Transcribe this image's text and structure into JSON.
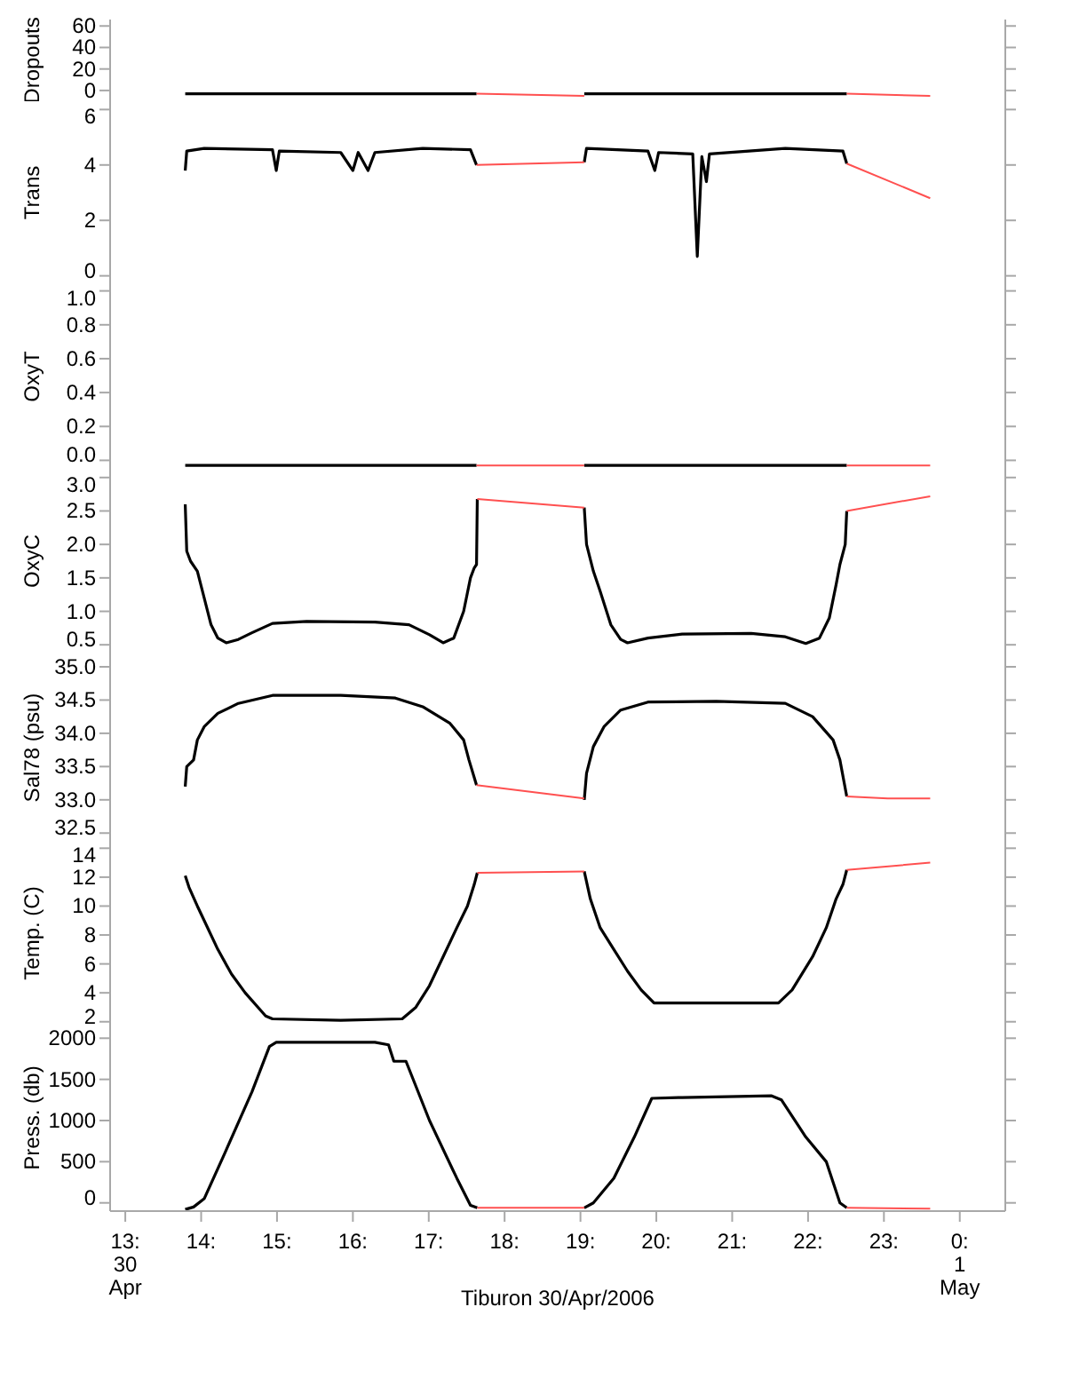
{
  "chart_data": [
    {
      "type": "line",
      "ylabel": "Dropouts",
      "xlim": [
        12.8,
        24.6
      ],
      "ylim": [
        -10,
        66
      ],
      "yticks": [
        0,
        20,
        40,
        60
      ],
      "tick_labels": "y",
      "series": [
        {
          "color": "#000000",
          "x": [
            13.79,
            17.63,
            18.3,
            19.05,
            22.51
          ],
          "values": [
            -3,
            -3,
            null,
            -3,
            -3
          ]
        },
        {
          "color": "#ff5050",
          "x": [
            17.63,
            19.05,
            20,
            22.51,
            23.61
          ],
          "values": [
            -3,
            -5,
            null,
            -3,
            -5
          ]
        }
      ]
    },
    {
      "type": "line",
      "ylabel": "Trans",
      "xlim": [
        12.8,
        24.6
      ],
      "ylim": [
        -0.3,
        6.3
      ],
      "yticks": [
        0,
        2,
        4,
        6
      ],
      "tick_labels": "y",
      "series": [
        {
          "color": "#000000",
          "x": [
            13.79,
            13.81,
            14.04,
            14.94,
            14.99,
            15.03,
            15.84,
            16.0,
            16.07,
            16.2,
            16.29,
            16.92,
            17.55,
            17.63,
            18.3,
            19.05,
            19.08,
            19.89,
            19.98,
            20.03,
            20.48,
            20.54,
            20.6,
            20.66,
            20.7,
            21.7,
            22.46,
            22.51
          ],
          "values": [
            3.8,
            4.5,
            4.6,
            4.55,
            3.8,
            4.5,
            4.45,
            3.8,
            4.45,
            3.8,
            4.45,
            4.6,
            4.55,
            4.0,
            null,
            4.1,
            4.6,
            4.5,
            3.8,
            4.45,
            4.4,
            0.7,
            4.3,
            3.4,
            4.4,
            4.6,
            4.5,
            4.05
          ]
        },
        {
          "color": "#ff5050",
          "x": [
            17.63,
            19.05,
            20,
            22.51,
            23.61
          ],
          "values": [
            4.0,
            4.1,
            null,
            4.05,
            2.8
          ]
        }
      ]
    },
    {
      "type": "line",
      "ylabel": "OxyT",
      "xlim": [
        12.8,
        24.6
      ],
      "ylim": [
        -0.05,
        1.04
      ],
      "yticks": [
        {
          "value": 0,
          "label": "0.0"
        },
        {
          "value": 0.2,
          "label": "0.2"
        },
        {
          "value": 0.4,
          "label": "0.4"
        },
        {
          "value": 0.6,
          "label": "0.6"
        },
        {
          "value": 0.8,
          "label": "0.8"
        },
        {
          "value": 1,
          "label": "1.0"
        }
      ],
      "tick_labels": "y",
      "series": [
        {
          "color": "#000000",
          "x": [
            13.79,
            17.63,
            18.3,
            19.05,
            22.51
          ],
          "values": [
            -0.03,
            -0.03,
            null,
            -0.03,
            -0.03
          ]
        },
        {
          "color": "#ff5050",
          "x": [
            17.63,
            19.05,
            20,
            22.51,
            23.61
          ],
          "values": [
            -0.03,
            -0.03,
            null,
            -0.03,
            -0.03
          ]
        }
      ]
    },
    {
      "type": "line",
      "ylabel": "OxyC",
      "xlim": [
        12.8,
        24.6
      ],
      "ylim": [
        0.37,
        3.13
      ],
      "yticks": [
        {
          "value": 0.5,
          "label": "0.5"
        },
        {
          "value": 1,
          "label": "1.0"
        },
        {
          "value": 1.5,
          "label": "1.5"
        },
        {
          "value": 2,
          "label": "2.0"
        },
        {
          "value": 2.5,
          "label": "2.5"
        },
        {
          "value": 3,
          "label": "3.0"
        }
      ],
      "tick_labels": "y",
      "series": [
        {
          "color": "#000000",
          "x": [
            13.79,
            13.81,
            13.86,
            13.95,
            14.04,
            14.13,
            14.22,
            14.33,
            14.49,
            14.67,
            14.94,
            15.39,
            16.29,
            16.74,
            17.01,
            17.19,
            17.33,
            17.46,
            17.55,
            17.6,
            17.63,
            17.64,
            18.3,
            19.05,
            19.08,
            19.17,
            19.26,
            19.4,
            19.53,
            19.62,
            19.89,
            20.34,
            21.25,
            21.7,
            21.97,
            22.15,
            22.28,
            22.37,
            22.42,
            22.49,
            22.51
          ],
          "values": [
            2.6,
            1.9,
            1.75,
            1.6,
            1.2,
            0.8,
            0.6,
            0.53,
            0.58,
            0.68,
            0.82,
            0.85,
            0.84,
            0.8,
            0.65,
            0.53,
            0.6,
            1.0,
            1.5,
            1.65,
            1.7,
            2.68,
            null,
            2.55,
            2.0,
            1.6,
            1.3,
            0.8,
            0.58,
            0.53,
            0.6,
            0.66,
            0.67,
            0.62,
            0.52,
            0.6,
            0.9,
            1.4,
            1.7,
            2.0,
            2.5
          ]
        },
        {
          "color": "#ff5050",
          "x": [
            17.64,
            19.05,
            20,
            22.51,
            23.61
          ],
          "values": [
            2.68,
            2.55,
            null,
            2.5,
            2.72
          ]
        }
      ]
    },
    {
      "type": "line",
      "ylabel": "Sal78 (psu)",
      "xlim": [
        12.8,
        24.6
      ],
      "ylim": [
        32.37,
        35.2
      ],
      "yticks": [
        {
          "value": 32.5,
          "label": "32.5"
        },
        {
          "value": 33,
          "label": "33.0"
        },
        {
          "value": 33.5,
          "label": "33.5"
        },
        {
          "value": 34,
          "label": "34.0"
        },
        {
          "value": 34.5,
          "label": "34.5"
        },
        {
          "value": 35,
          "label": "35.0"
        }
      ],
      "tick_labels": "y",
      "series": [
        {
          "color": "#000000",
          "x": [
            13.79,
            13.81,
            13.9,
            13.95,
            14.04,
            14.22,
            14.49,
            14.94,
            15.84,
            16.56,
            16.92,
            17.28,
            17.46,
            17.53,
            17.63,
            18.3,
            19.05,
            19.08,
            19.17,
            19.31,
            19.53,
            19.89,
            20.79,
            21.7,
            22.06,
            22.33,
            22.42,
            22.51
          ],
          "values": [
            33.2,
            33.5,
            33.6,
            33.9,
            34.1,
            34.3,
            34.45,
            34.57,
            34.57,
            34.53,
            34.4,
            34.15,
            33.9,
            33.6,
            33.22,
            null,
            33.0,
            33.4,
            33.8,
            34.1,
            34.35,
            34.47,
            34.48,
            34.45,
            34.25,
            33.9,
            33.6,
            33.05
          ]
        },
        {
          "color": "#ff5050",
          "x": [
            17.63,
            19.05,
            20,
            22.51,
            23.05,
            23.61
          ],
          "values": [
            33.22,
            33.02,
            null,
            33.05,
            33.02,
            33.02
          ]
        }
      ]
    },
    {
      "type": "line",
      "ylabel": "Temp. (C)",
      "xlim": [
        12.8,
        24.6
      ],
      "ylim": [
        1.8,
        14.45
      ],
      "yticks": [
        2,
        4,
        6,
        8,
        10,
        12,
        14
      ],
      "tick_labels": "y",
      "series": [
        {
          "color": "#000000",
          "x": [
            13.79,
            13.84,
            13.95,
            14.04,
            14.22,
            14.4,
            14.58,
            14.85,
            14.94,
            15.84,
            16.65,
            16.83,
            17.01,
            17.19,
            17.37,
            17.51,
            17.6,
            17.64,
            18.3,
            19.05,
            19.13,
            19.26,
            19.44,
            19.62,
            19.8,
            19.97,
            21.61,
            21.79,
            22.06,
            22.24,
            22.37,
            22.46,
            22.51
          ],
          "values": [
            12.1,
            11.3,
            10,
            9,
            7,
            5.3,
            4,
            2.4,
            2.2,
            2.1,
            2.2,
            3,
            4.5,
            6.5,
            8.5,
            10,
            11.5,
            12.3,
            null,
            12.4,
            10.5,
            8.5,
            7,
            5.5,
            4.2,
            3.3,
            3.3,
            4.2,
            6.5,
            8.5,
            10.5,
            11.5,
            12.5
          ]
        },
        {
          "color": "#ff5050",
          "x": [
            17.64,
            19.05,
            20,
            22.51,
            23.61
          ],
          "values": [
            12.3,
            12.4,
            null,
            12.5,
            13.0
          ]
        }
      ]
    },
    {
      "type": "line",
      "ylabel": "Press. (db)",
      "xlabel": "Tiburon 30/Apr/2006",
      "xlim": [
        12.8,
        24.6
      ],
      "xticks": [
        {
          "value": 13,
          "label": "13:\n30\nApr"
        },
        {
          "value": 14,
          "label": "14:"
        },
        {
          "value": 15,
          "label": "15:"
        },
        {
          "value": 16,
          "label": "16:"
        },
        {
          "value": 17,
          "label": "17:"
        },
        {
          "value": 18,
          "label": "18:"
        },
        {
          "value": 19,
          "label": "19:"
        },
        {
          "value": 20,
          "label": "20:"
        },
        {
          "value": 21,
          "label": "21:"
        },
        {
          "value": 22,
          "label": "22:"
        },
        {
          "value": 23,
          "label": "23:"
        },
        {
          "value": 24,
          "label": "0:\n1\nMay"
        }
      ],
      "ylim": [
        -100,
        2165
      ],
      "yticks": [
        0,
        500,
        1000,
        1500,
        2000
      ],
      "series": [
        {
          "color": "#000000",
          "x": [
            13.79,
            13.9,
            14.04,
            14.31,
            14.67,
            14.9,
            14.99,
            16.29,
            16.47,
            16.54,
            16.7,
            17.01,
            17.37,
            17.55,
            17.64,
            18.3,
            19.05,
            19.17,
            19.44,
            19.71,
            19.94,
            20.34,
            21.52,
            21.65,
            21.97,
            22.24,
            22.42,
            22.51
          ],
          "values": [
            -80,
            -50,
            50,
            600,
            1350,
            1900,
            1950,
            1950,
            1920,
            1720,
            1720,
            1000,
            300,
            -30,
            -60,
            null,
            -60,
            0,
            300,
            800,
            1270,
            1280,
            1300,
            1250,
            800,
            500,
            0,
            -60
          ]
        },
        {
          "color": "#ff5050",
          "x": [
            17.64,
            19.05,
            20,
            22.51,
            23.61
          ],
          "values": [
            -60,
            -60,
            null,
            -60,
            -70
          ]
        }
      ]
    }
  ]
}
